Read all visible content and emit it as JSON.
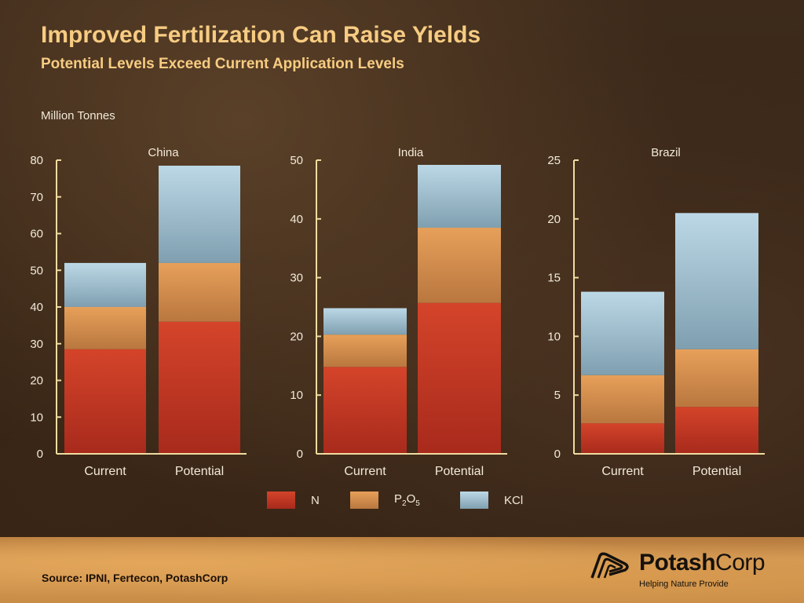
{
  "header": {
    "title": "Improved Fertilization Can Raise Yields",
    "subtitle": "Potential Levels Exceed Current Application Levels",
    "units": "Million Tonnes"
  },
  "legend": [
    {
      "label": "N",
      "color": "#c83b20"
    },
    {
      "label_main": "P",
      "sub1": "2",
      "mid": "O",
      "sub2": "5",
      "color": "#e2924a"
    },
    {
      "label": "KCl",
      "color": "#9dc0d2"
    }
  ],
  "chart_data": [
    {
      "type": "bar",
      "stacked": true,
      "title": "China",
      "categories": [
        "Current",
        "Potential"
      ],
      "series": [
        {
          "name": "N",
          "values": [
            28.5,
            36
          ]
        },
        {
          "name": "P2O5",
          "values": [
            11.5,
            16
          ]
        },
        {
          "name": "KCl",
          "values": [
            12,
            26.5
          ]
        }
      ],
      "ylim": [
        0,
        80
      ],
      "yticks": [
        0,
        10,
        20,
        30,
        40,
        50,
        60,
        70,
        80
      ]
    },
    {
      "type": "bar",
      "stacked": true,
      "title": "India",
      "categories": [
        "Current",
        "Potential"
      ],
      "series": [
        {
          "name": "N",
          "values": [
            14.8,
            25.7
          ]
        },
        {
          "name": "P2O5",
          "values": [
            5.5,
            12.8
          ]
        },
        {
          "name": "KCl",
          "values": [
            4.5,
            10.7
          ]
        }
      ],
      "ylim": [
        0,
        50
      ],
      "yticks": [
        0,
        10,
        20,
        30,
        40,
        50
      ]
    },
    {
      "type": "bar",
      "stacked": true,
      "title": "Brazil",
      "categories": [
        "Current",
        "Potential"
      ],
      "series": [
        {
          "name": "N",
          "values": [
            2.6,
            4.0
          ]
        },
        {
          "name": "P2O5",
          "values": [
            4.1,
            4.9
          ]
        },
        {
          "name": "KCl",
          "values": [
            7.1,
            11.6
          ]
        }
      ],
      "ylim": [
        0,
        25
      ],
      "yticks": [
        0,
        5,
        10,
        15,
        20,
        25
      ]
    }
  ],
  "footer": {
    "source": "Source: IPNI, Fertecon, PotashCorp",
    "brand_bold": "Potash",
    "brand_light": "Corp",
    "tagline": "Helping Nature Provide"
  }
}
